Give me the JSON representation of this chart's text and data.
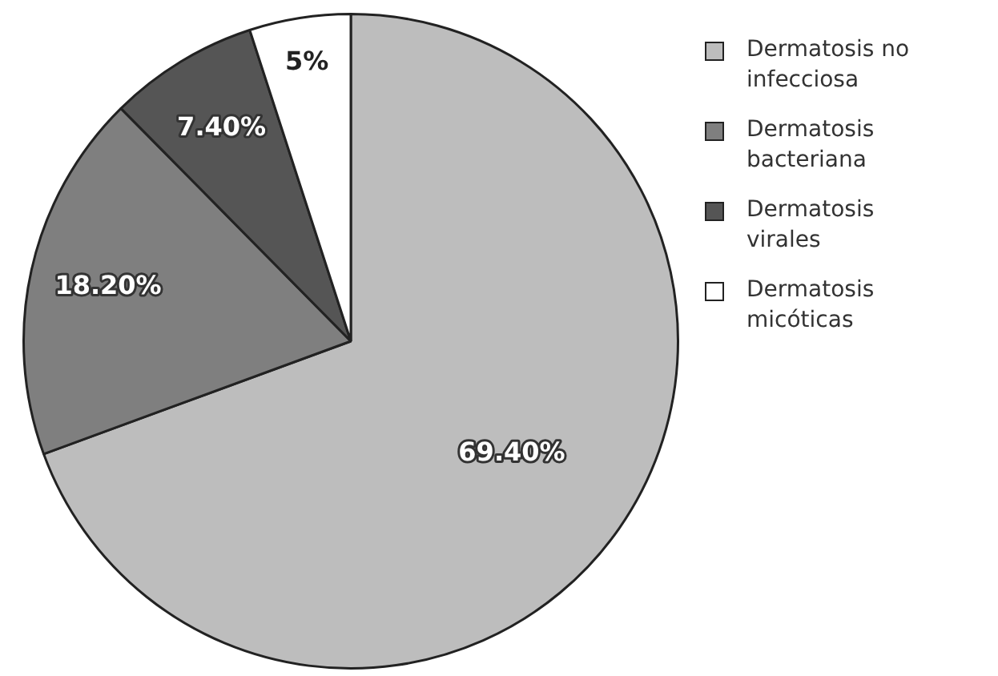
{
  "chart_data": {
    "type": "pie",
    "categories": [
      "Dermatosis no infecciosa",
      "Dermatosis bacteriana",
      "Dermatosis virales",
      "Dermatosis micóticas"
    ],
    "values": [
      69.4,
      18.2,
      7.4,
      5
    ],
    "value_labels": [
      "69.40%",
      "18.20%",
      "7.40%",
      "5%"
    ],
    "colors": [
      "#bdbdbd",
      "#7f7f7f",
      "#555555",
      "#ffffff"
    ],
    "legend": "right"
  }
}
